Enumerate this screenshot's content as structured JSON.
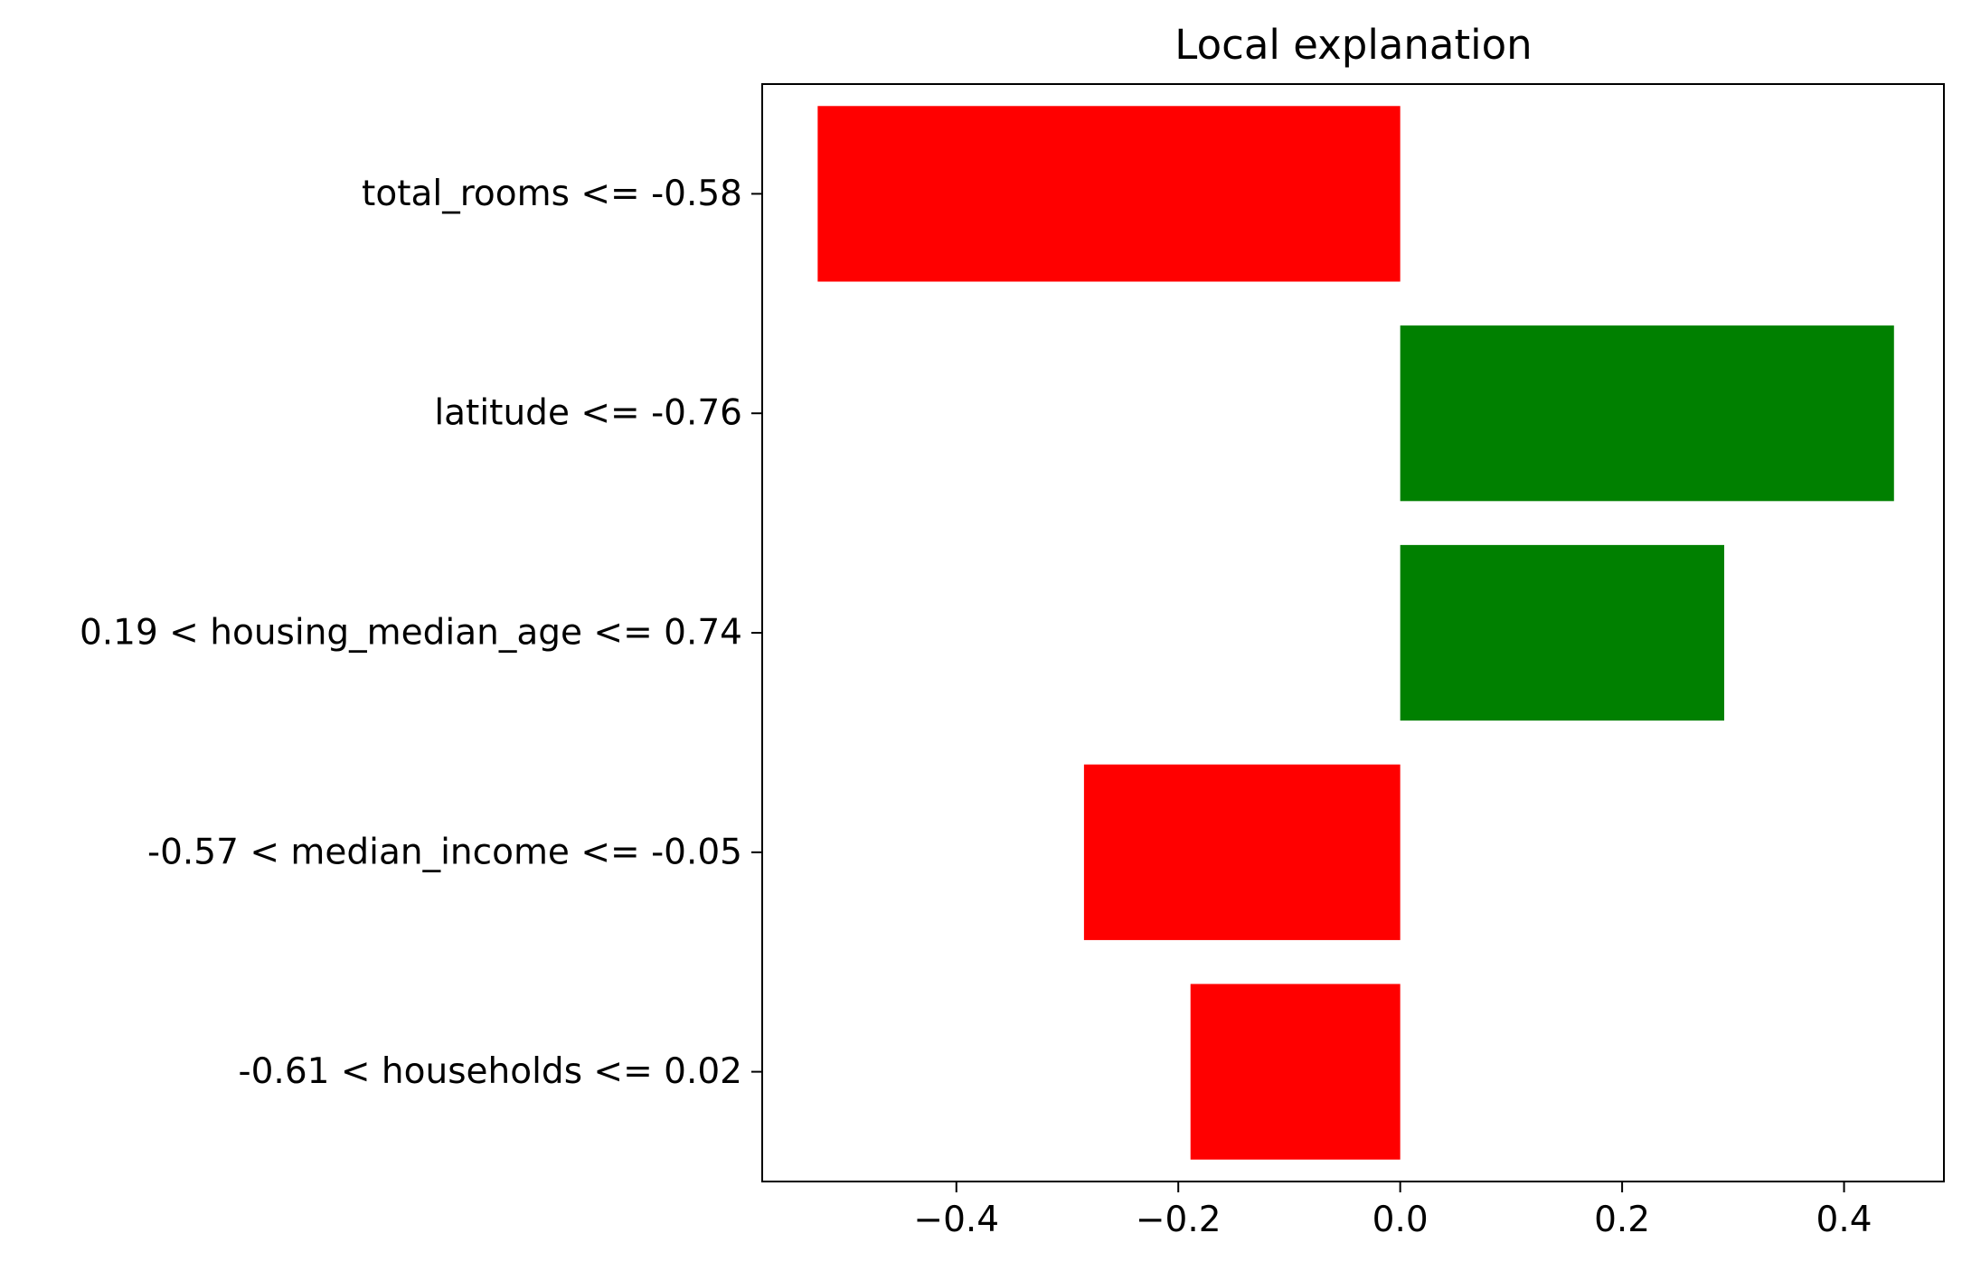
{
  "chart_data": {
    "type": "bar",
    "orientation": "horizontal",
    "title": "Local explanation",
    "xlabel": "",
    "ylabel": "",
    "xlim": [
      -0.575,
      0.49
    ],
    "grid": false,
    "categories": [
      "total_rooms <= -0.58",
      "latitude <= -0.76",
      "0.19 < housing_median_age <= 0.74",
      "-0.57 < median_income <= -0.05",
      "-0.61 < households <= 0.02"
    ],
    "values": [
      -0.525,
      0.445,
      0.292,
      -0.285,
      -0.189
    ],
    "colors": [
      "#ff0000",
      "#008000",
      "#008000",
      "#ff0000",
      "#ff0000"
    ],
    "xticks": [
      -0.4,
      -0.2,
      0.0,
      0.2,
      0.4
    ],
    "xtick_labels": [
      "−0.4",
      "−0.2",
      "0.0",
      "0.2",
      "0.4"
    ]
  }
}
